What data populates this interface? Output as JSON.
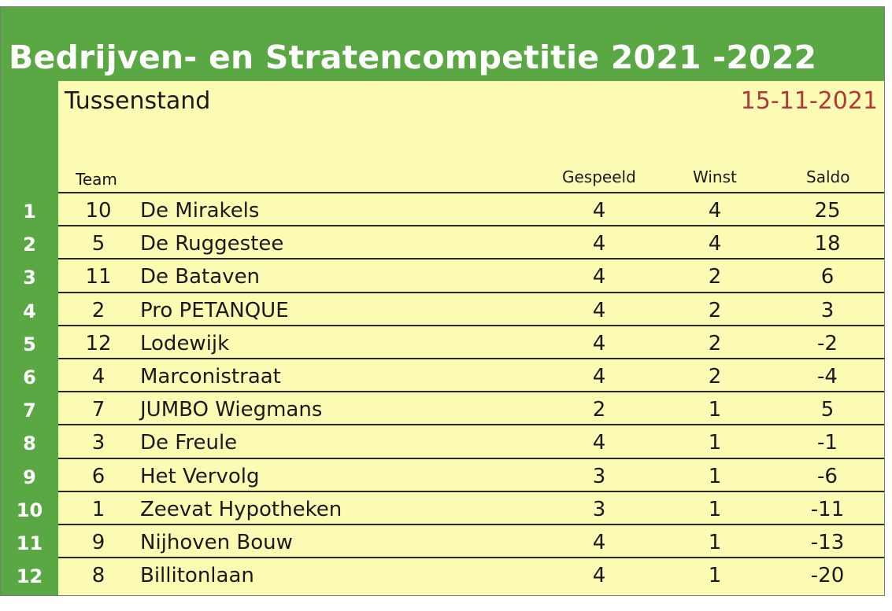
{
  "title": "Bedrijven- en Stratencompetitie 2021 -2022",
  "subtitle": "Tussenstand",
  "date": "15-11-2021",
  "colors": {
    "green": "#5aa843",
    "background": "#fbfbb4",
    "date": "#b03a3a"
  },
  "headers": {
    "team": "Team",
    "played": "Gespeeld",
    "wins": "Winst",
    "saldo": "Saldo"
  },
  "rows": [
    {
      "rank": "1",
      "num": "10",
      "name": "De Mirakels",
      "played": "4",
      "wins": "4",
      "saldo": "25"
    },
    {
      "rank": "2",
      "num": "5",
      "name": "De Ruggestee",
      "played": "4",
      "wins": "4",
      "saldo": "18"
    },
    {
      "rank": "3",
      "num": "11",
      "name": "De Bataven",
      "played": "4",
      "wins": "2",
      "saldo": "6"
    },
    {
      "rank": "4",
      "num": "2",
      "name": "Pro PETANQUE",
      "played": "4",
      "wins": "2",
      "saldo": "3"
    },
    {
      "rank": "5",
      "num": "12",
      "name": "Lodewijk",
      "played": "4",
      "wins": "2",
      "saldo": "-2"
    },
    {
      "rank": "6",
      "num": "4",
      "name": "Marconistraat",
      "played": "4",
      "wins": "2",
      "saldo": "-4"
    },
    {
      "rank": "7",
      "num": "7",
      "name": "JUMBO Wiegmans",
      "played": "2",
      "wins": "1",
      "saldo": "5"
    },
    {
      "rank": "8",
      "num": "3",
      "name": "De Freule",
      "played": "4",
      "wins": "1",
      "saldo": "-1"
    },
    {
      "rank": "9",
      "num": "6",
      "name": "Het Vervolg",
      "played": "3",
      "wins": "1",
      "saldo": "-6"
    },
    {
      "rank": "10",
      "num": "1",
      "name": "Zeevat Hypotheken",
      "played": "3",
      "wins": "1",
      "saldo": "-11"
    },
    {
      "rank": "11",
      "num": "9",
      "name": "Nijhoven Bouw",
      "played": "4",
      "wins": "1",
      "saldo": "-13"
    },
    {
      "rank": "12",
      "num": "8",
      "name": "Billitonlaan",
      "played": "4",
      "wins": "1",
      "saldo": "-20"
    }
  ]
}
